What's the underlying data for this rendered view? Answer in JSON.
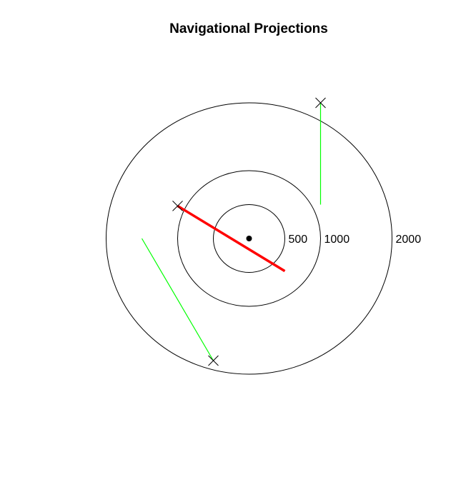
{
  "chart_data": {
    "type": "scatter",
    "title": "Navigational Projections",
    "xlabel": "",
    "ylabel": "",
    "range_rings": [
      {
        "radius": 500,
        "label": "500"
      },
      {
        "radius": 1000,
        "label": "1000"
      },
      {
        "radius": 2000,
        "label": "2000"
      }
    ],
    "origin": {
      "x": 0,
      "y": 0
    },
    "tracks": [
      {
        "color": "#ff0000",
        "emphasis": "bold",
        "current": {
          "x": -1000,
          "y": 480
        },
        "projected": {
          "x": 500,
          "y": -480
        }
      },
      {
        "color": "#00ff00",
        "emphasis": "normal",
        "current": {
          "x": 1000,
          "y": 2000
        },
        "projected": {
          "x": 1000,
          "y": 500
        }
      },
      {
        "color": "#00ff00",
        "emphasis": "normal",
        "current": {
          "x": -500,
          "y": -1800
        },
        "projected": {
          "x": -1500,
          "y": 0
        }
      }
    ],
    "grid": false,
    "legend": "none"
  }
}
